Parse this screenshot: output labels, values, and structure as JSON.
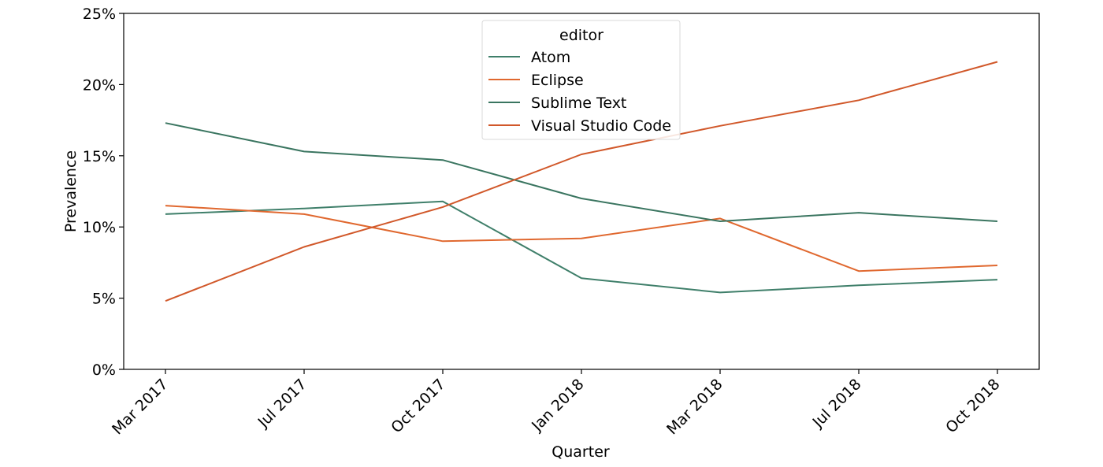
{
  "chart_data": {
    "type": "line",
    "title": "",
    "xlabel": "Quarter",
    "ylabel": "Prevalence",
    "categories": [
      "Mar 2017",
      "Jul 2017",
      "Oct 2017",
      "Jan 2018",
      "Mar 2018",
      "Jul 2018",
      "Oct 2018"
    ],
    "ylim": [
      0,
      25
    ],
    "yticks": [
      0,
      5,
      10,
      15,
      20,
      25
    ],
    "ytick_labels": [
      "0%",
      "5%",
      "10%",
      "15%",
      "20%",
      "25%"
    ],
    "grid": false,
    "legend": {
      "title": "editor",
      "placement": "top-center"
    },
    "series": [
      {
        "name": "Atom",
        "color": "#3f7f6a",
        "values": [
          10.9,
          11.3,
          11.8,
          6.4,
          5.4,
          5.9,
          6.3
        ]
      },
      {
        "name": "Eclipse",
        "color": "#e0682f",
        "values": [
          11.5,
          10.9,
          9.0,
          9.2,
          10.6,
          6.9,
          7.3
        ]
      },
      {
        "name": "Sublime Text",
        "color": "#3a7560",
        "values": [
          17.3,
          15.3,
          14.7,
          12.0,
          10.4,
          11.0,
          10.4
        ]
      },
      {
        "name": "Visual Studio Code",
        "color": "#d1582a",
        "values": [
          4.8,
          8.6,
          11.4,
          15.1,
          17.1,
          18.9,
          21.6
        ]
      }
    ]
  }
}
